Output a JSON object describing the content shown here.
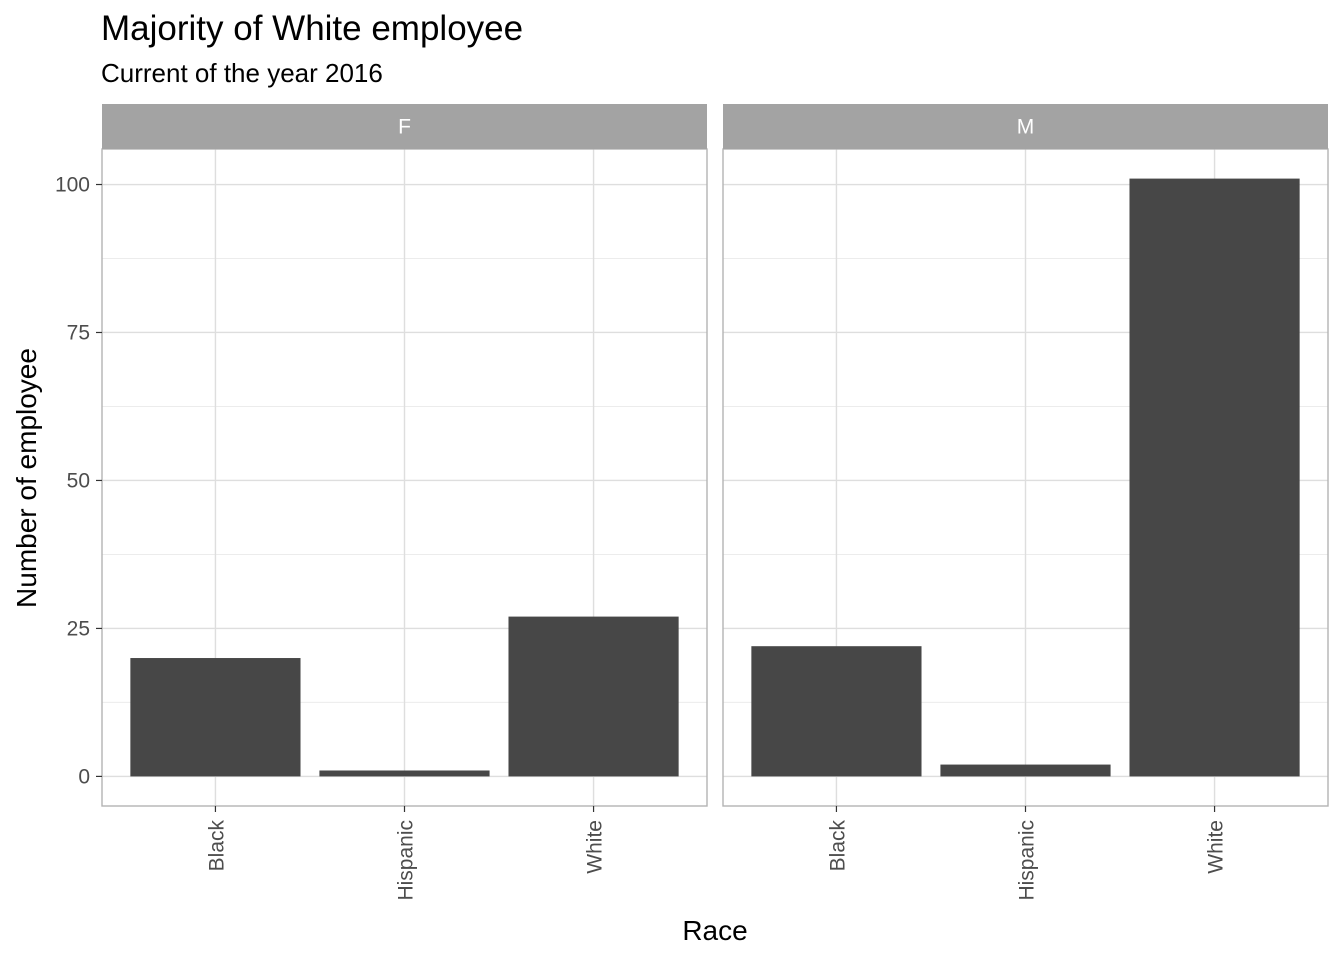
{
  "chart_data": {
    "type": "bar",
    "title": "Majority of White employee",
    "subtitle": "Current of the year 2016",
    "xlabel": "Race",
    "ylabel": "Number of employee",
    "categories": [
      "Black",
      "Hispanic",
      "White"
    ],
    "facets": [
      {
        "label": "F",
        "values": [
          20,
          1,
          27
        ]
      },
      {
        "label": "M",
        "values": [
          22,
          2,
          101
        ]
      }
    ],
    "ylim": [
      -5,
      106
    ],
    "yticks": [
      0,
      25,
      50,
      75,
      100
    ],
    "grid": true,
    "bar_color": "#474747",
    "strip_color": "#a3a3a3",
    "panel_border_color": "#b3b3b3",
    "grid_major_color": "#dedede",
    "grid_minor_color": "#ececec"
  }
}
